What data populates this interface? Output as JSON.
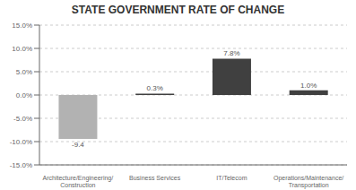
{
  "chart_data": {
    "type": "bar",
    "title": "STATE GOVERNMENT RATE OF CHANGE",
    "categories": [
      "Architecture/Engineering/\nConstruction",
      "Business Services",
      "IT/Telecom",
      "Operations/Maintenance/\nTransportation"
    ],
    "values": [
      -9.4,
      0.3,
      7.8,
      1.0
    ],
    "value_labels": [
      "-9.4",
      "0.3%",
      "7.8%",
      "1.0%"
    ],
    "data_labels": true,
    "colors": [
      "#b2b2b2",
      "#404040",
      "#404040",
      "#404040"
    ],
    "ylim": [
      -15,
      15
    ],
    "yticks": [
      {
        "value": -15,
        "label": "-15.0%"
      },
      {
        "value": -10,
        "label": "-10.0%"
      },
      {
        "value": -5,
        "label": "-5.0%"
      },
      {
        "value": 0,
        "label": "0.0%"
      },
      {
        "value": 5,
        "label": "5.0%"
      },
      {
        "value": 10,
        "label": "10.0%"
      },
      {
        "value": 15,
        "label": "15.0%"
      }
    ],
    "grid": true
  }
}
